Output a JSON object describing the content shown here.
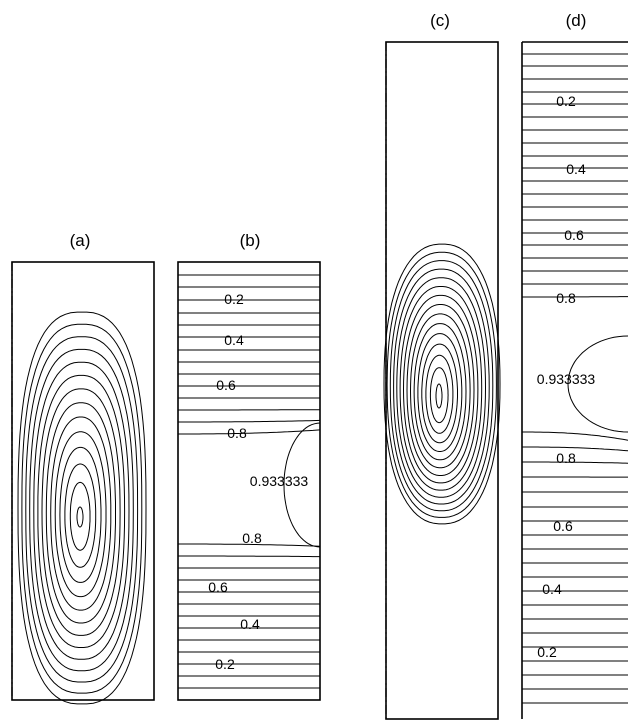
{
  "panels": {
    "a": {
      "title": "(a)"
    },
    "b": {
      "title": "(b)",
      "labels": [
        {
          "text": "0.2"
        },
        {
          "text": "0.4"
        },
        {
          "text": "0.6"
        },
        {
          "text": "0.8"
        },
        {
          "text": "0.933333"
        },
        {
          "text": "0.8"
        },
        {
          "text": "0.6"
        },
        {
          "text": "0.4"
        },
        {
          "text": "0.2"
        }
      ]
    },
    "c": {
      "title": "(c)"
    },
    "d": {
      "title": "(d)",
      "labels": [
        {
          "text": "0.2"
        },
        {
          "text": "0.4"
        },
        {
          "text": "0.6"
        },
        {
          "text": "0.8"
        },
        {
          "text": "0.933333"
        },
        {
          "text": "0.8"
        },
        {
          "text": "0.6"
        },
        {
          "text": "0.4"
        },
        {
          "text": "0.2"
        }
      ]
    }
  },
  "colors": {
    "line": "#000000",
    "background": "#ffffff"
  }
}
